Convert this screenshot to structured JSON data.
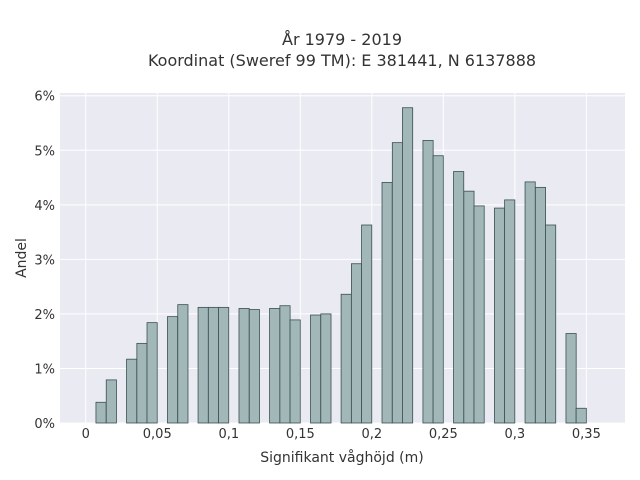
{
  "chart_data": {
    "type": "bar",
    "title_lines": [
      "År 1979 - 2019",
      "Koordinat (Sweref 99 TM): E 381441, N 6137888"
    ],
    "xlabel": "Signifikant våghöjd (m)",
    "ylabel": "Andel",
    "x_tick_labels": [
      "0",
      "0,05",
      "0,1",
      "0,15",
      "0,2",
      "0,25",
      "0,3",
      "0,35"
    ],
    "x_tick_values": [
      0,
      0.05,
      0.1,
      0.15,
      0.2,
      0.25,
      0.3,
      0.35
    ],
    "y_tick_labels": [
      "0%",
      "1%",
      "2%",
      "3%",
      "4%",
      "5%",
      "6%"
    ],
    "y_tick_values": [
      0,
      1,
      2,
      3,
      4,
      5,
      6
    ],
    "xlim": [
      -0.018,
      0.377
    ],
    "ylim": [
      0,
      6.05
    ],
    "bin_width": 0.00714,
    "series": [
      {
        "values": [
          [
            0.0036,
            0.0
          ],
          [
            0.0107,
            0.38
          ],
          [
            0.0179,
            0.79
          ],
          [
            0.0321,
            1.17
          ],
          [
            0.0393,
            1.46
          ],
          [
            0.0464,
            1.84
          ],
          [
            0.0607,
            1.95
          ],
          [
            0.0679,
            2.17
          ],
          [
            0.0821,
            2.12
          ],
          [
            0.0893,
            2.12
          ],
          [
            0.0964,
            2.12
          ],
          [
            0.1107,
            2.1
          ],
          [
            0.1179,
            2.08
          ],
          [
            0.1321,
            2.1
          ],
          [
            0.1393,
            2.15
          ],
          [
            0.1464,
            1.89
          ],
          [
            0.1607,
            1.98
          ],
          [
            0.1679,
            2.0
          ],
          [
            0.1821,
            2.36
          ],
          [
            0.1893,
            2.92
          ],
          [
            0.1964,
            3.63
          ],
          [
            0.2107,
            4.41
          ],
          [
            0.2179,
            5.14
          ],
          [
            0.225,
            5.78
          ],
          [
            0.2393,
            5.18
          ],
          [
            0.2464,
            4.9
          ],
          [
            0.2607,
            4.61
          ],
          [
            0.2679,
            4.25
          ],
          [
            0.275,
            3.98
          ],
          [
            0.2893,
            3.94
          ],
          [
            0.2964,
            4.09
          ],
          [
            0.3107,
            4.42
          ],
          [
            0.3179,
            4.32
          ],
          [
            0.325,
            3.63
          ],
          [
            0.3393,
            1.64
          ],
          [
            0.3464,
            0.27
          ],
          [
            0.3536,
            0.0
          ]
        ]
      }
    ],
    "colors": {
      "bar_fill": "#a1b7b8",
      "bar_edge": "#3b4f50",
      "plot_bg": "#eaeaf2",
      "grid": "#ffffff"
    },
    "grid": true
  }
}
